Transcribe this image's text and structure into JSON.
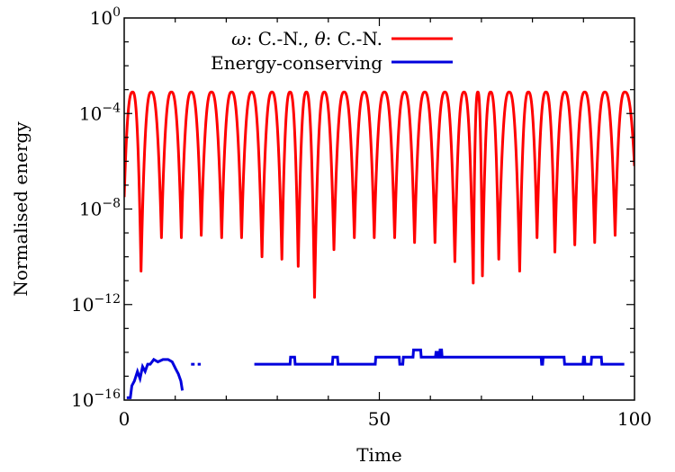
{
  "chart_data": {
    "type": "line",
    "title": "",
    "xlabel": "Time",
    "ylabel": "Normalised energy",
    "xlim": [
      0,
      100
    ],
    "ylim_log10": [
      -16,
      0
    ],
    "y_scale": "log",
    "grid": false,
    "legend_position": "top-right",
    "x_ticks": [
      {
        "value": 0,
        "label": "0"
      },
      {
        "value": 50,
        "label": "50"
      },
      {
        "value": 100,
        "label": "100"
      }
    ],
    "y_ticks": [
      {
        "exp": 0,
        "base": "10",
        "sup": "0"
      },
      {
        "exp": -4,
        "base": "10",
        "sup": "−4"
      },
      {
        "exp": -8,
        "base": "10",
        "sup": "−8"
      },
      {
        "exp": -12,
        "base": "10",
        "sup": "−12"
      },
      {
        "exp": -16,
        "base": "10",
        "sup": "−16"
      }
    ],
    "series": [
      {
        "name": "ω: C.-N., θ: C.-N.",
        "legend_prefix": "ω",
        "legend_mid": ": C.-N., ",
        "legend_theta": "θ",
        "legend_suffix": ": C.-N.",
        "color": "#ff0000",
        "kind": "oscillation",
        "peak_log10": -3.1,
        "min_times": [
          0,
          3.3,
          7.3,
          11.2,
          15.1,
          19.1,
          23.0,
          27.0,
          30.9,
          34.1,
          37.3,
          41.1,
          45.1,
          49.0,
          53.0,
          56.9,
          60.9,
          64.8,
          68.4,
          70.2,
          73.4,
          77.5,
          80.9,
          84.4,
          88.3,
          92.2,
          96.2,
          100
        ],
        "min_log10": [
          -7.5,
          -10.6,
          -9.2,
          -9.2,
          -9.1,
          -9.2,
          -9.2,
          -10.0,
          -10.1,
          -10.4,
          -11.7,
          -9.7,
          -9.2,
          -9.2,
          -9.2,
          -9.4,
          -9.4,
          -10.2,
          -11.1,
          -10.8,
          -10.1,
          -10.6,
          -9.2,
          -9.8,
          -9.5,
          -9.4,
          -9.1,
          -6.2
        ]
      },
      {
        "name": "Energy-conserving",
        "color": "#0000dd",
        "kind": "segments",
        "segments": [
          {
            "x": [
              0.5,
              1.2,
              1.5,
              2.0,
              2.6,
              3.1,
              3.6,
              4.1,
              4.6,
              5.1,
              5.8,
              6.6,
              7.6,
              8.6,
              9.4,
              10.1,
              10.6,
              11.1,
              11.4
            ],
            "y": [
              -15.9,
              -15.9,
              -15.4,
              -15.2,
              -14.8,
              -15.1,
              -14.6,
              -14.8,
              -14.5,
              -14.5,
              -14.3,
              -14.4,
              -14.3,
              -14.3,
              -14.4,
              -14.7,
              -14.9,
              -15.2,
              -15.6
            ]
          },
          {
            "x": [
              13.1,
              13.8
            ],
            "y": [
              -14.5,
              -14.5
            ]
          },
          {
            "x": [
              14.4,
              15.0
            ],
            "y": [
              -14.5,
              -14.5
            ]
          },
          {
            "x": [
              25.5,
              32.5,
              32.6,
              33.4,
              33.5,
              40.8,
              40.9,
              41.8,
              41.9,
              49.2,
              49.3,
              53.9,
              54.0,
              54.6,
              54.7,
              56.6,
              56.7,
              58.1,
              58.2,
              61.0,
              61.1,
              61.4,
              61.5,
              61.8,
              61.9,
              62.2,
              62.3,
              65.8,
              65.9,
              81.7,
              81.8,
              82.0,
              82.1,
              86.2,
              86.3,
              89.9,
              90.0,
              90.2,
              90.3,
              91.5,
              91.6,
              93.5,
              93.6,
              98.0
            ],
            "y": [
              -14.5,
              -14.5,
              -14.2,
              -14.2,
              -14.5,
              -14.5,
              -14.2,
              -14.2,
              -14.5,
              -14.5,
              -14.2,
              -14.2,
              -14.5,
              -14.5,
              -14.2,
              -14.2,
              -13.9,
              -13.9,
              -14.2,
              -14.2,
              -14.0,
              -14.0,
              -14.2,
              -14.2,
              -13.9,
              -13.9,
              -14.2,
              -14.2,
              -14.2,
              -14.2,
              -14.5,
              -14.5,
              -14.2,
              -14.2,
              -14.5,
              -14.5,
              -14.2,
              -14.2,
              -14.5,
              -14.5,
              -14.2,
              -14.2,
              -14.5,
              -14.5
            ]
          }
        ]
      }
    ]
  }
}
